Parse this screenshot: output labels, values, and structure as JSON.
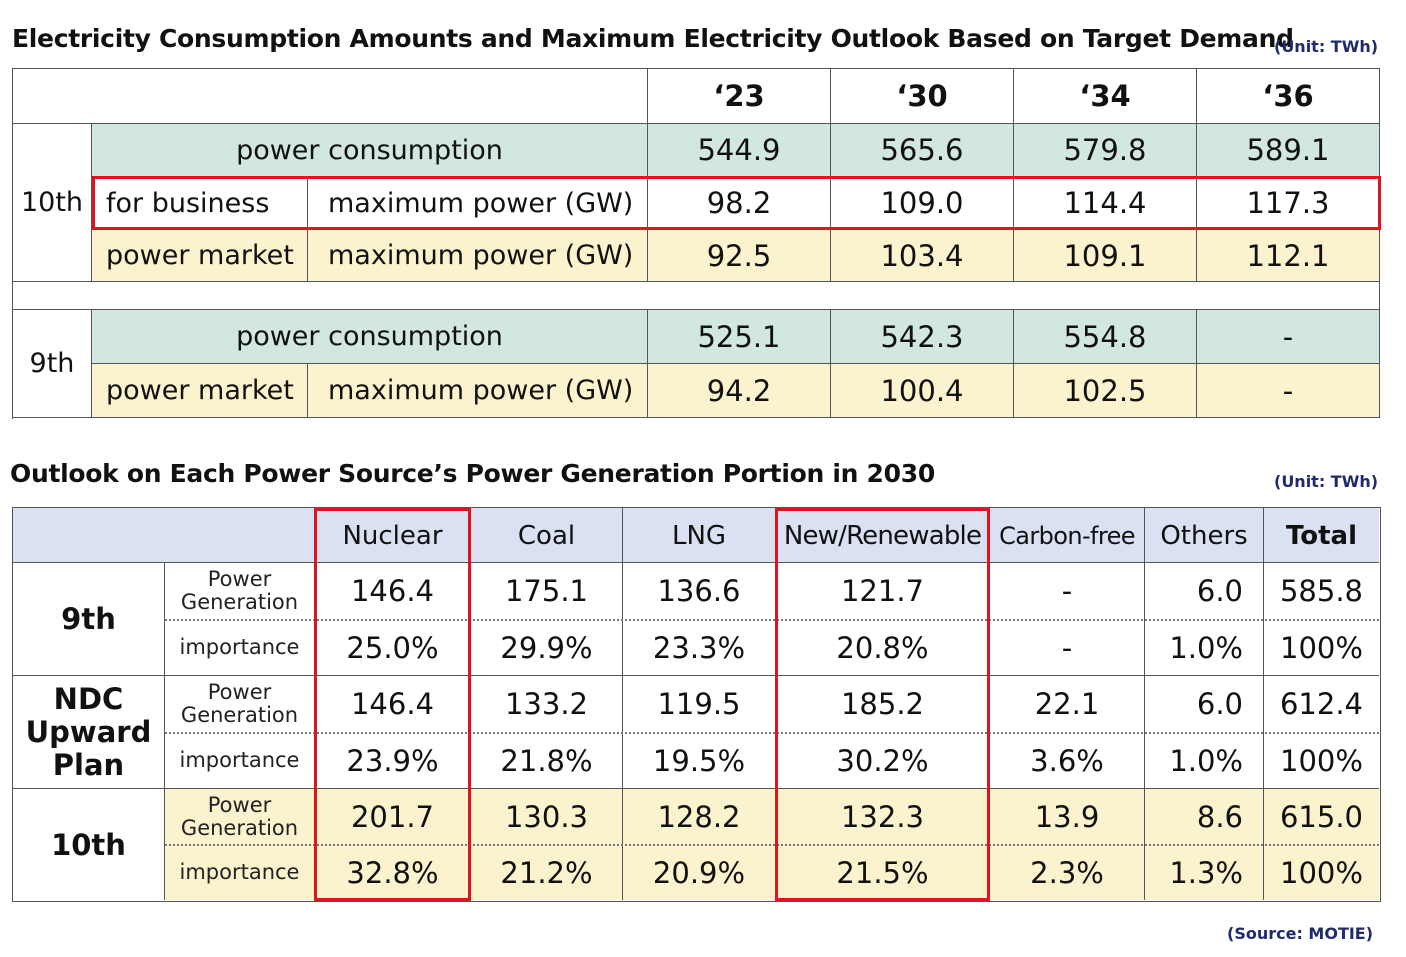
{
  "table1": {
    "title": "Electricity Consumption Amounts and Maximum Electricity Outlook Based on Target Demand",
    "unit": "(Unit: TWh)",
    "years": [
      "‘23",
      "‘30",
      "‘34",
      "‘36"
    ],
    "group_10th": "10th",
    "group_9th": "9th",
    "rows_10th": [
      {
        "label": "power consumption",
        "values": [
          "544.9",
          "565.6",
          "579.8",
          "589.1"
        ]
      },
      {
        "label": "for business",
        "sublabel": "maximum power (GW)",
        "values": [
          "98.2",
          "109.0",
          "114.4",
          "117.3"
        ]
      },
      {
        "label": "power market",
        "sublabel": "maximum power (GW)",
        "values": [
          "92.5",
          "103.4",
          "109.1",
          "112.1"
        ]
      }
    ],
    "rows_9th": [
      {
        "label": "power consumption",
        "values": [
          "525.1",
          "542.3",
          "554.8",
          "-"
        ]
      },
      {
        "label": "power market",
        "sublabel": "maximum power (GW)",
        "values": [
          "94.2",
          "100.4",
          "102.5",
          "-"
        ]
      }
    ],
    "colors": {
      "green": "#d2e7df",
      "yellow": "#fbf3cd",
      "highlight": "#e0141e"
    }
  },
  "table2": {
    "title": "Outlook on Each Power Source’s Power Generation Portion in 2030",
    "unit": "(Unit: TWh)",
    "columns": [
      "Nuclear",
      "Coal",
      "LNG",
      "New/Renewable",
      "Carbon-free",
      "Others",
      "Total"
    ],
    "label_power_line1": "Power",
    "label_power_line2": "Generation",
    "label_importance": "importance",
    "groups": [
      {
        "name": "9th",
        "power": [
          "146.4",
          "175.1",
          "136.6",
          "121.7",
          "-",
          "6.0",
          "585.8"
        ],
        "importance": [
          "25.0%",
          "29.9%",
          "23.3%",
          "20.8%",
          "-",
          "1.0%",
          "100%"
        ]
      },
      {
        "name_line1": "NDC",
        "name_line2": "Upward",
        "name_line3": "Plan",
        "power": [
          "146.4",
          "133.2",
          "119.5",
          "185.2",
          "22.1",
          "6.0",
          "612.4"
        ],
        "importance": [
          "23.9%",
          "21.8%",
          "19.5%",
          "30.2%",
          "3.6%",
          "1.0%",
          "100%"
        ]
      },
      {
        "name": "10th",
        "power": [
          "201.7",
          "130.3",
          "128.2",
          "132.3",
          "13.9",
          "8.6",
          "615.0"
        ],
        "importance": [
          "32.8%",
          "21.2%",
          "20.9%",
          "21.5%",
          "2.3%",
          "1.3%",
          "100%"
        ]
      }
    ],
    "colors": {
      "header": "#d9e1f2",
      "yellow": "#fbf3cd",
      "highlight": "#e0141e"
    }
  },
  "source": "(Source: MOTIE)",
  "chart_data": [
    {
      "type": "table",
      "title": "Electricity Consumption Amounts and Maximum Electricity Outlook Based on Target Demand",
      "unit": "(Unit: TWh)",
      "columns": [
        "‘23",
        "‘30",
        "‘34",
        "‘36"
      ],
      "rows": [
        {
          "group": "10th",
          "label": "power consumption",
          "values": [
            544.9,
            565.6,
            579.8,
            589.1
          ]
        },
        {
          "group": "10th",
          "label": "for business maximum power (GW)",
          "values": [
            98.2,
            109.0,
            114.4,
            117.3
          ]
        },
        {
          "group": "10th",
          "label": "power market maximum power (GW)",
          "values": [
            92.5,
            103.4,
            109.1,
            112.1
          ]
        },
        {
          "group": "9th",
          "label": "power consumption",
          "values": [
            525.1,
            542.3,
            554.8,
            null
          ]
        },
        {
          "group": "9th",
          "label": "power market maximum power (GW)",
          "values": [
            94.2,
            100.4,
            102.5,
            null
          ]
        }
      ]
    },
    {
      "type": "table",
      "title": "Outlook on Each Power Source’s Power Generation Portion in 2030",
      "unit": "(Unit: TWh)",
      "columns": [
        "Nuclear",
        "Coal",
        "LNG",
        "New/Renewable",
        "Carbon-free",
        "Others",
        "Total"
      ],
      "rows": [
        {
          "group": "9th",
          "label": "Power Generation",
          "values": [
            146.4,
            175.1,
            136.6,
            121.7,
            null,
            6.0,
            585.8
          ]
        },
        {
          "group": "9th",
          "label": "importance",
          "values": [
            "25.0%",
            "29.9%",
            "23.3%",
            "20.8%",
            "-",
            "1.0%",
            "100%"
          ]
        },
        {
          "group": "NDC Upward Plan",
          "label": "Power Generation",
          "values": [
            146.4,
            133.2,
            119.5,
            185.2,
            22.1,
            6.0,
            612.4
          ]
        },
        {
          "group": "NDC Upward Plan",
          "label": "importance",
          "values": [
            "23.9%",
            "21.8%",
            "19.5%",
            "30.2%",
            "3.6%",
            "1.0%",
            "100%"
          ]
        },
        {
          "group": "10th",
          "label": "Power Generation",
          "values": [
            201.7,
            130.3,
            128.2,
            132.3,
            13.9,
            8.6,
            615.0
          ]
        },
        {
          "group": "10th",
          "label": "importance",
          "values": [
            "32.8%",
            "21.2%",
            "20.9%",
            "21.5%",
            "2.3%",
            "1.3%",
            "100%"
          ]
        }
      ]
    }
  ]
}
